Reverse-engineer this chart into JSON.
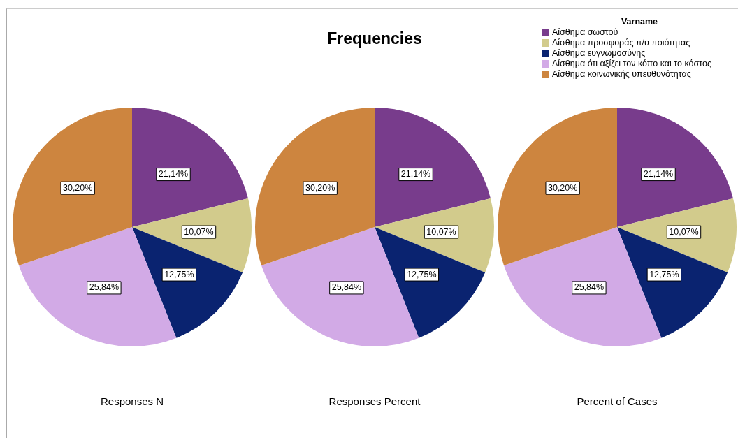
{
  "chart_data": [
    {
      "type": "pie",
      "xlabel": "Responses N",
      "categories": [
        null,
        null,
        null,
        null,
        null
      ],
      "values": [
        21.14,
        10.07,
        12.75,
        25.84,
        30.2
      ],
      "value_labels": [
        "21,14%",
        "10,07%",
        "12,75%",
        "25,84%",
        "30,20%"
      ],
      "colors": [
        "#783c8c",
        "#d2cb8c",
        "#0a2370",
        "#d2aae6",
        "#cd853f"
      ]
    },
    {
      "type": "pie",
      "title": "Frequencies",
      "xlabel": "Responses Percent",
      "categories": [
        null,
        null,
        null,
        null,
        null
      ],
      "values": [
        21.14,
        10.07,
        12.75,
        25.84,
        30.2
      ],
      "value_labels": [
        "21,14%",
        "10,07%",
        "12,75%",
        "25,84%",
        "30,20%"
      ],
      "colors": [
        "#783c8c",
        "#d2cb8c",
        "#0a2370",
        "#d2aae6",
        "#cd853f"
      ]
    },
    {
      "type": "pie",
      "xlabel": "Percent of Cases",
      "legend_title": "Varname",
      "legend": "top right",
      "categories": [
        "Αίσθημα σωστού",
        "Αίσθημα προσφοράς π/υ ποιότητας",
        "Αίσθημα ευγνωμοσύνης",
        "Αίσθημα ότι αξίζει τον κόπο και το κόστος",
        "Αίσθημα κοινωνικής υπευθυνότητας"
      ],
      "values": [
        21.14,
        10.07,
        12.75,
        25.84,
        30.2
      ],
      "value_labels": [
        "21,14%",
        "10,07%",
        "12,75%",
        "25,84%",
        "30,20%"
      ],
      "colors": [
        "#783c8c",
        "#d2cb8c",
        "#0a2370",
        "#d2aae6",
        "#cd853f"
      ]
    }
  ]
}
